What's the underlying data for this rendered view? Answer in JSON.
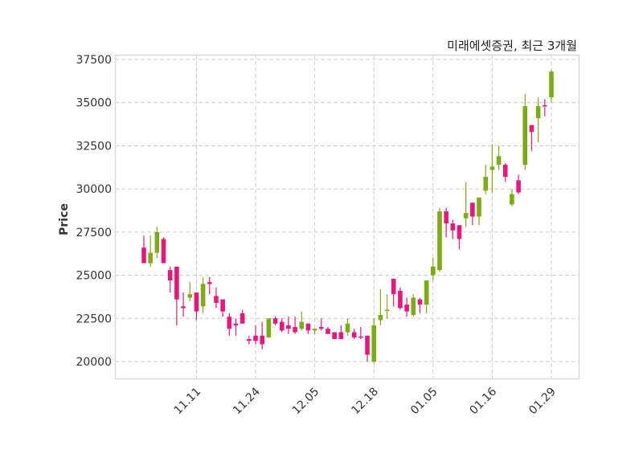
{
  "chart_data": {
    "type": "candlestick",
    "title": "미래에셋증권, 최근 3개월",
    "ylabel": "Price",
    "xlabel": "",
    "ylim": [
      19100,
      37700
    ],
    "grid": true,
    "yticks": [
      20000,
      22500,
      25000,
      27500,
      30000,
      32500,
      35000,
      37500
    ],
    "ytick_labels": [
      "20000",
      "22500",
      "25000",
      "27500",
      "30000",
      "32500",
      "35000",
      "37500"
    ],
    "xticks": [
      {
        "index": 8,
        "label": "11.11"
      },
      {
        "index": 17,
        "label": "11.24"
      },
      {
        "index": 26,
        "label": "12.05"
      },
      {
        "index": 35,
        "label": "12.18"
      },
      {
        "index": 44,
        "label": "01.05"
      },
      {
        "index": 53,
        "label": "01.16"
      },
      {
        "index": 62,
        "label": "01.29"
      }
    ],
    "colors": {
      "up": "#7cac13",
      "down": "#e8177d",
      "grid": "#cccccc",
      "frame": "#d9d9d9"
    },
    "candles": [
      [
        26600,
        27300,
        25700,
        25700
      ],
      [
        25700,
        27300,
        25500,
        26300
      ],
      [
        26300,
        27800,
        26000,
        27500
      ],
      [
        27100,
        27200,
        25700,
        25700
      ],
      [
        25300,
        25500,
        24000,
        24700
      ],
      [
        25500,
        25500,
        22100,
        23600
      ],
      [
        23200,
        24000,
        22600,
        23100
      ],
      [
        23700,
        24600,
        23500,
        23900
      ],
      [
        24000,
        24000,
        22400,
        22900
      ],
      [
        23200,
        24900,
        22800,
        24500
      ],
      [
        24600,
        24900,
        23900,
        24500
      ],
      [
        23800,
        24300,
        23100,
        23400
      ],
      [
        23600,
        23600,
        22600,
        22900
      ],
      [
        22600,
        22800,
        21500,
        21900
      ],
      [
        22200,
        22500,
        21500,
        22100
      ],
      [
        22800,
        23000,
        22200,
        22200
      ],
      [
        21300,
        21500,
        21000,
        21200
      ],
      [
        21500,
        22100,
        21000,
        21200
      ],
      [
        21500,
        22300,
        20700,
        21000
      ],
      [
        21400,
        22500,
        21400,
        22500
      ],
      [
        22500,
        22600,
        22100,
        22200
      ],
      [
        22300,
        22500,
        21700,
        21800
      ],
      [
        22100,
        22600,
        21600,
        21900
      ],
      [
        22000,
        22600,
        21600,
        21700
      ],
      [
        21900,
        22900,
        21800,
        22300
      ],
      [
        22200,
        22200,
        21600,
        21800
      ],
      [
        21800,
        21900,
        21600,
        21900
      ],
      [
        22000,
        22500,
        21800,
        21900
      ],
      [
        21900,
        22000,
        21600,
        21600
      ],
      [
        21700,
        21700,
        21300,
        21300
      ],
      [
        21700,
        22100,
        21300,
        21300
      ],
      [
        21700,
        22500,
        21500,
        22200
      ],
      [
        21700,
        21900,
        21300,
        21400
      ],
      [
        21450,
        22000,
        21300,
        21400
      ],
      [
        21500,
        21500,
        20000,
        20400
      ],
      [
        20000,
        22500,
        19900,
        22100
      ],
      [
        22400,
        24200,
        22100,
        22700
      ],
      [
        23000,
        23900,
        22500,
        23000
      ],
      [
        24800,
        24800,
        23200,
        23900
      ],
      [
        24100,
        24300,
        23000,
        23100
      ],
      [
        23300,
        23700,
        22600,
        22900
      ],
      [
        22700,
        23900,
        22600,
        23700
      ],
      [
        23600,
        23700,
        22800,
        23300
      ],
      [
        23300,
        24700,
        22800,
        24700
      ],
      [
        25000,
        26000,
        24700,
        25500
      ],
      [
        25300,
        28900,
        25200,
        28700
      ],
      [
        28700,
        28900,
        27200,
        28000
      ],
      [
        28000,
        28200,
        27100,
        27600
      ],
      [
        27900,
        27900,
        26500,
        27100
      ],
      [
        28300,
        30400,
        27800,
        28600
      ],
      [
        29200,
        29200,
        27900,
        28400
      ],
      [
        28400,
        29500,
        27900,
        29500
      ],
      [
        29900,
        31400,
        29700,
        30700
      ],
      [
        31100,
        32600,
        29800,
        31300
      ],
      [
        31400,
        32500,
        31100,
        31900
      ],
      [
        31400,
        31500,
        30400,
        30700
      ],
      [
        29100,
        30000,
        29000,
        29700
      ],
      [
        30500,
        30800,
        29700,
        29800
      ],
      [
        31400,
        35500,
        31100,
        34800
      ],
      [
        33700,
        33700,
        32200,
        33300
      ],
      [
        34100,
        35300,
        32700,
        34800
      ],
      [
        34850,
        35200,
        34200,
        34800
      ],
      [
        35300,
        36900,
        35000,
        36800
      ]
    ]
  }
}
